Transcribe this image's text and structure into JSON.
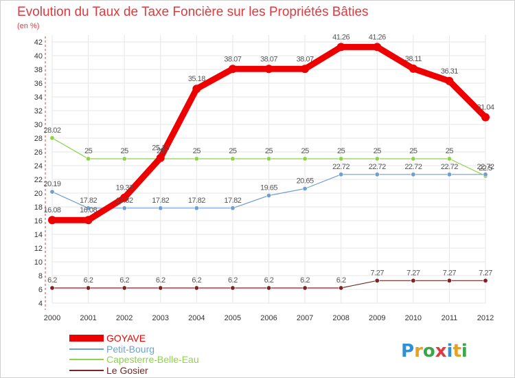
{
  "chart_data": {
    "type": "line",
    "title": "Evolution du Taux de Taxe Foncière sur les Propriétés Bâties",
    "subtitle": "(en %)",
    "xlabel": "",
    "ylabel": "",
    "x": [
      "2000",
      "2001",
      "2002",
      "2003",
      "2004",
      "2005",
      "2006",
      "2007",
      "2008",
      "2009",
      "2010",
      "2011",
      "2012"
    ],
    "yticks": [
      4,
      6,
      8,
      10,
      12,
      14,
      16,
      18,
      20,
      22,
      24,
      26,
      28,
      30,
      32,
      34,
      36,
      38,
      40,
      42
    ],
    "ylim": [
      4,
      42
    ],
    "grid": true,
    "legend_position": "bottom-left",
    "series": [
      {
        "name": "GOYAVE",
        "color": "#ee0000",
        "values": [
          16.08,
          16.08,
          19.33,
          25.13,
          35.18,
          38.07,
          38.07,
          38.07,
          41.26,
          41.26,
          38.11,
          36.31,
          31.04
        ],
        "labels": [
          "16.08",
          "16.08",
          "19.33",
          "25.13",
          "35.18",
          "38.07",
          "38.07",
          "38.07",
          "41.26",
          "41.26",
          "38.11",
          "36.31",
          "31.04"
        ]
      },
      {
        "name": "Petit-Bourg",
        "color": "#6f9fd1",
        "values": [
          20.19,
          17.82,
          17.82,
          17.82,
          17.82,
          17.82,
          19.65,
          20.65,
          22.72,
          22.72,
          22.72,
          22.72,
          22.72
        ],
        "labels": [
          "20.19",
          "17.82",
          "17.82",
          "17.82",
          "17.82",
          "17.82",
          "19.65",
          "20.65",
          "22.72",
          "22.72",
          "22.72",
          "22.72",
          "22.72"
        ]
      },
      {
        "name": "Capesterre-Belle-Eau",
        "color": "#8ed14b",
        "values": [
          28.02,
          25,
          25,
          25,
          25,
          25,
          25,
          25,
          25,
          25,
          25,
          25,
          22.5
        ],
        "labels": [
          "28.02",
          "25",
          "25",
          "25",
          "25",
          "25",
          "25",
          "25",
          "25",
          "25",
          "25",
          "25",
          "22.5"
        ]
      },
      {
        "name": "Le Gosier",
        "color": "#7a2424",
        "values": [
          6.2,
          6.2,
          6.2,
          6.2,
          6.2,
          6.2,
          6.2,
          6.2,
          6.2,
          7.27,
          7.27,
          7.27,
          7.27
        ],
        "labels": [
          "6.2",
          "6.2",
          "6.2",
          "6.2",
          "6.2",
          "6.2",
          "6.2",
          "6.2",
          "6.2",
          "7.27",
          "7.27",
          "7.27",
          "7.27"
        ]
      }
    ]
  },
  "logo": {
    "text": "Proxiti",
    "letter_colors": [
      "#2f8fd8",
      "#e8a020",
      "#3aa64a",
      "#e0393e",
      "#2f8fd8",
      "#e8a020",
      "#3aa64a"
    ]
  }
}
